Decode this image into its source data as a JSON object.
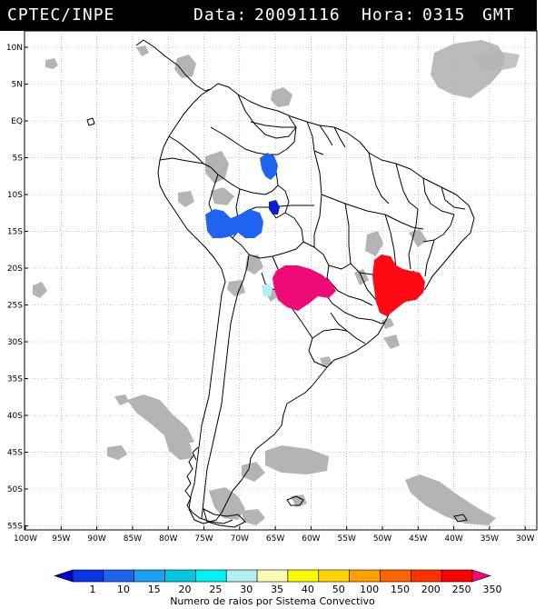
{
  "header": {
    "source": "CPTEC/INPE",
    "date_label": "Data:",
    "date_value": "20091116",
    "time_label": "Hora:",
    "time_value": "0315",
    "timezone": "GMT"
  },
  "map": {
    "lat_labels": [
      "10N",
      "5N",
      "EQ",
      "5S",
      "10S",
      "15S",
      "20S",
      "25S",
      "30S",
      "35S",
      "40S",
      "45S",
      "50S",
      "55S"
    ],
    "lon_labels": [
      "100W",
      "95W",
      "90W",
      "85W",
      "80W",
      "75W",
      "70W",
      "65W",
      "60W",
      "55W",
      "50W",
      "45W",
      "40W",
      "35W",
      "30W"
    ],
    "colors": {
      "clouds": "#b4b4b4",
      "border": "#000000",
      "grid": "#9a9a9a"
    }
  },
  "systems": [
    {
      "name": "peru-north",
      "color": "#1e64f0"
    },
    {
      "name": "peru-small",
      "color": "#0a1ed2"
    },
    {
      "name": "bolivia-peru",
      "color": "#1e64f0"
    },
    {
      "name": "paraguay",
      "color": "#f00a78"
    },
    {
      "name": "sao-paulo",
      "color": "#ff0a14"
    },
    {
      "name": "chaco-light",
      "color": "#b4f0f0"
    }
  ],
  "legend": {
    "labels": [
      "1",
      "10",
      "15",
      "20",
      "25",
      "30",
      "35",
      "40",
      "50",
      "100",
      "150",
      "200",
      "250",
      "350"
    ],
    "colors": [
      "#0000c8",
      "#0a32e6",
      "#1e64f0",
      "#1ea0f0",
      "#00c8dc",
      "#00f0f0",
      "#b4f0f0",
      "#fafab4",
      "#fafa00",
      "#ffd200",
      "#ffa000",
      "#ff6400",
      "#ff3200",
      "#ff0000",
      "#f00a78"
    ],
    "caption": "Numero de raios por Sistema Convectivo"
  }
}
